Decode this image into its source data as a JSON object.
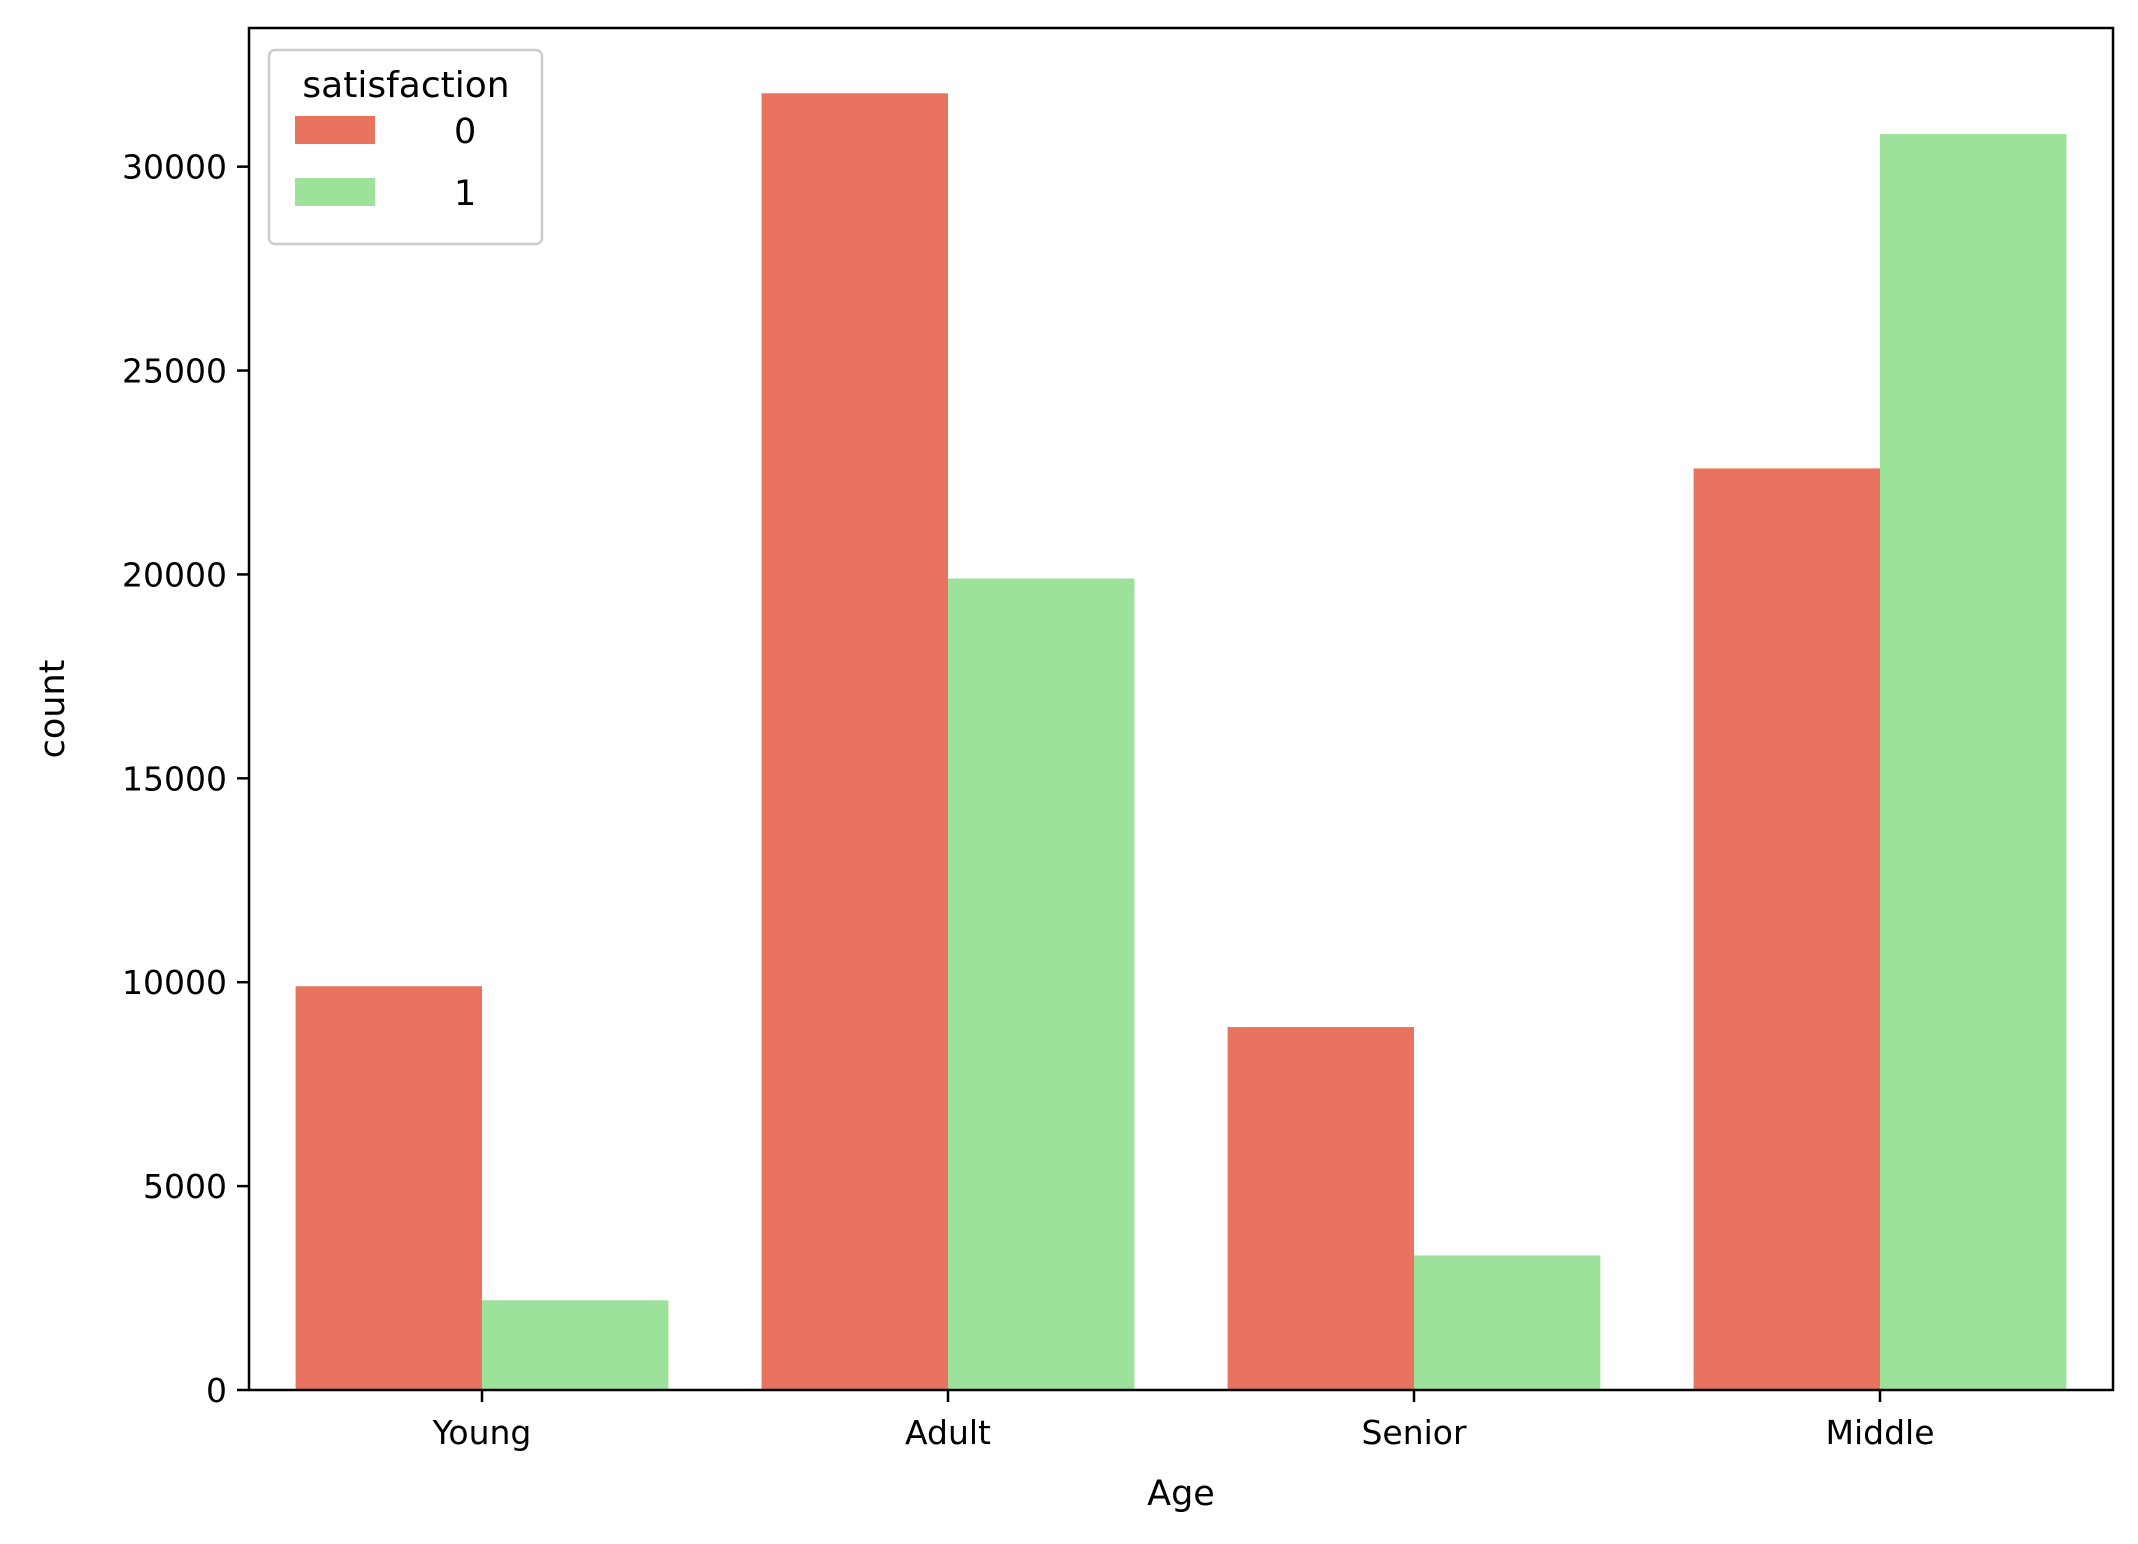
{
  "chart_data": {
    "type": "bar",
    "title": "",
    "xlabel": "Age",
    "ylabel": "count",
    "categories": [
      "Young",
      "Adult",
      "Senior",
      "Middle"
    ],
    "series": [
      {
        "name": "0",
        "color": "#e8735f",
        "values": [
          9900,
          31800,
          8900,
          22600
        ]
      },
      {
        "name": "1",
        "color": "#9de29a",
        "values": [
          2200,
          19900,
          3300,
          30800
        ]
      }
    ],
    "ylim": [
      0,
      33400
    ],
    "yticks": [
      0,
      5000,
      10000,
      15000,
      20000,
      25000,
      30000
    ],
    "grid": false,
    "legend": {
      "title": "satisfaction",
      "placement": "top-left"
    }
  }
}
